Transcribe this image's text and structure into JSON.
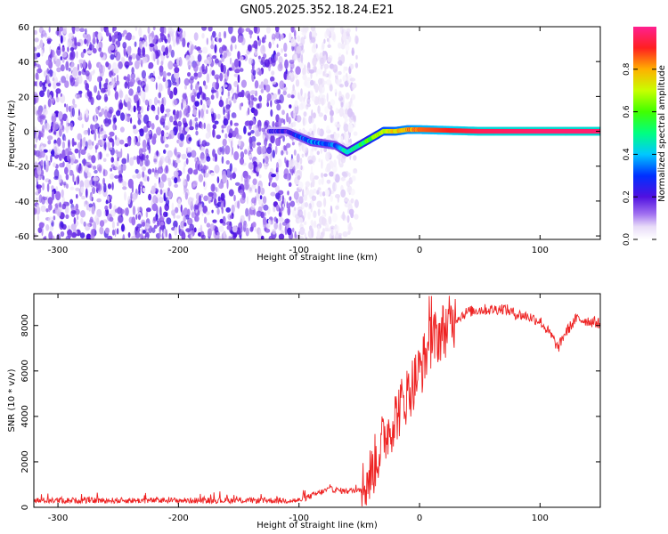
{
  "title": "GN05.2025.352.18.24.E21",
  "chart_data": [
    {
      "type": "heatmap",
      "name": "spectrogram",
      "xlabel": "Height of straight line (km)",
      "ylabel": "Frequency (Hz)",
      "xlim": [
        -320,
        150
      ],
      "ylim": [
        -62,
        60
      ],
      "xticks": [
        -300,
        -200,
        -100,
        0,
        100
      ],
      "yticks": [
        -60,
        -40,
        -20,
        0,
        20,
        40,
        60
      ],
      "colorbar": {
        "label": "Normalized spectral amplitude",
        "range": [
          0,
          1
        ],
        "ticks": [
          0.0,
          0.2,
          0.4,
          0.6,
          0.8
        ],
        "tick_labels": [
          "0.0",
          "0.2",
          "0.4",
          "0.6",
          "0.8"
        ]
      },
      "noise_region_km": [
        -320,
        -60
      ],
      "signal_track": [
        {
          "x": -125,
          "y": 0,
          "amp": 0.18
        },
        {
          "x": -110,
          "y": 0,
          "amp": 0.2
        },
        {
          "x": -100,
          "y": -3,
          "amp": 0.3
        },
        {
          "x": -90,
          "y": -6,
          "amp": 0.35
        },
        {
          "x": -80,
          "y": -7,
          "amp": 0.35
        },
        {
          "x": -70,
          "y": -8,
          "amp": 0.33
        },
        {
          "x": -60,
          "y": -12,
          "amp": 0.45
        },
        {
          "x": -50,
          "y": -8,
          "amp": 0.5
        },
        {
          "x": -40,
          "y": -4,
          "amp": 0.6
        },
        {
          "x": -30,
          "y": 0,
          "amp": 0.7
        },
        {
          "x": -20,
          "y": 0,
          "amp": 0.75
        },
        {
          "x": -10,
          "y": 1,
          "amp": 0.8
        },
        {
          "x": 0,
          "y": 1,
          "amp": 0.85
        },
        {
          "x": 50,
          "y": 0,
          "amp": 0.95
        },
        {
          "x": 100,
          "y": 0,
          "amp": 0.97
        },
        {
          "x": 150,
          "y": 0,
          "amp": 0.97
        }
      ]
    },
    {
      "type": "line",
      "name": "snr",
      "xlabel": "Height of straight line (km)",
      "ylabel": "SNR (10 * v/v)",
      "xlim": [
        -320,
        150
      ],
      "ylim": [
        0,
        9400
      ],
      "xticks": [
        -300,
        -200,
        -100,
        0,
        100
      ],
      "yticks": [
        0,
        2000,
        4000,
        6000,
        8000
      ],
      "color": "#ee2222",
      "envelope": {
        "x": [
          -320,
          -100,
          -90,
          -75,
          -60,
          -48,
          -40,
          -30,
          -20,
          -10,
          0,
          10,
          20,
          30,
          40,
          50,
          60,
          70,
          80,
          90,
          100,
          110,
          115,
          120,
          130,
          140,
          150
        ],
        "y": [
          300,
          300,
          500,
          800,
          700,
          800,
          1500,
          3000,
          4000,
          5000,
          6000,
          7300,
          7800,
          8300,
          8600,
          8700,
          8700,
          8750,
          8500,
          8400,
          8200,
          7500,
          7000,
          7600,
          8300,
          8200,
          8100
        ]
      }
    }
  ]
}
